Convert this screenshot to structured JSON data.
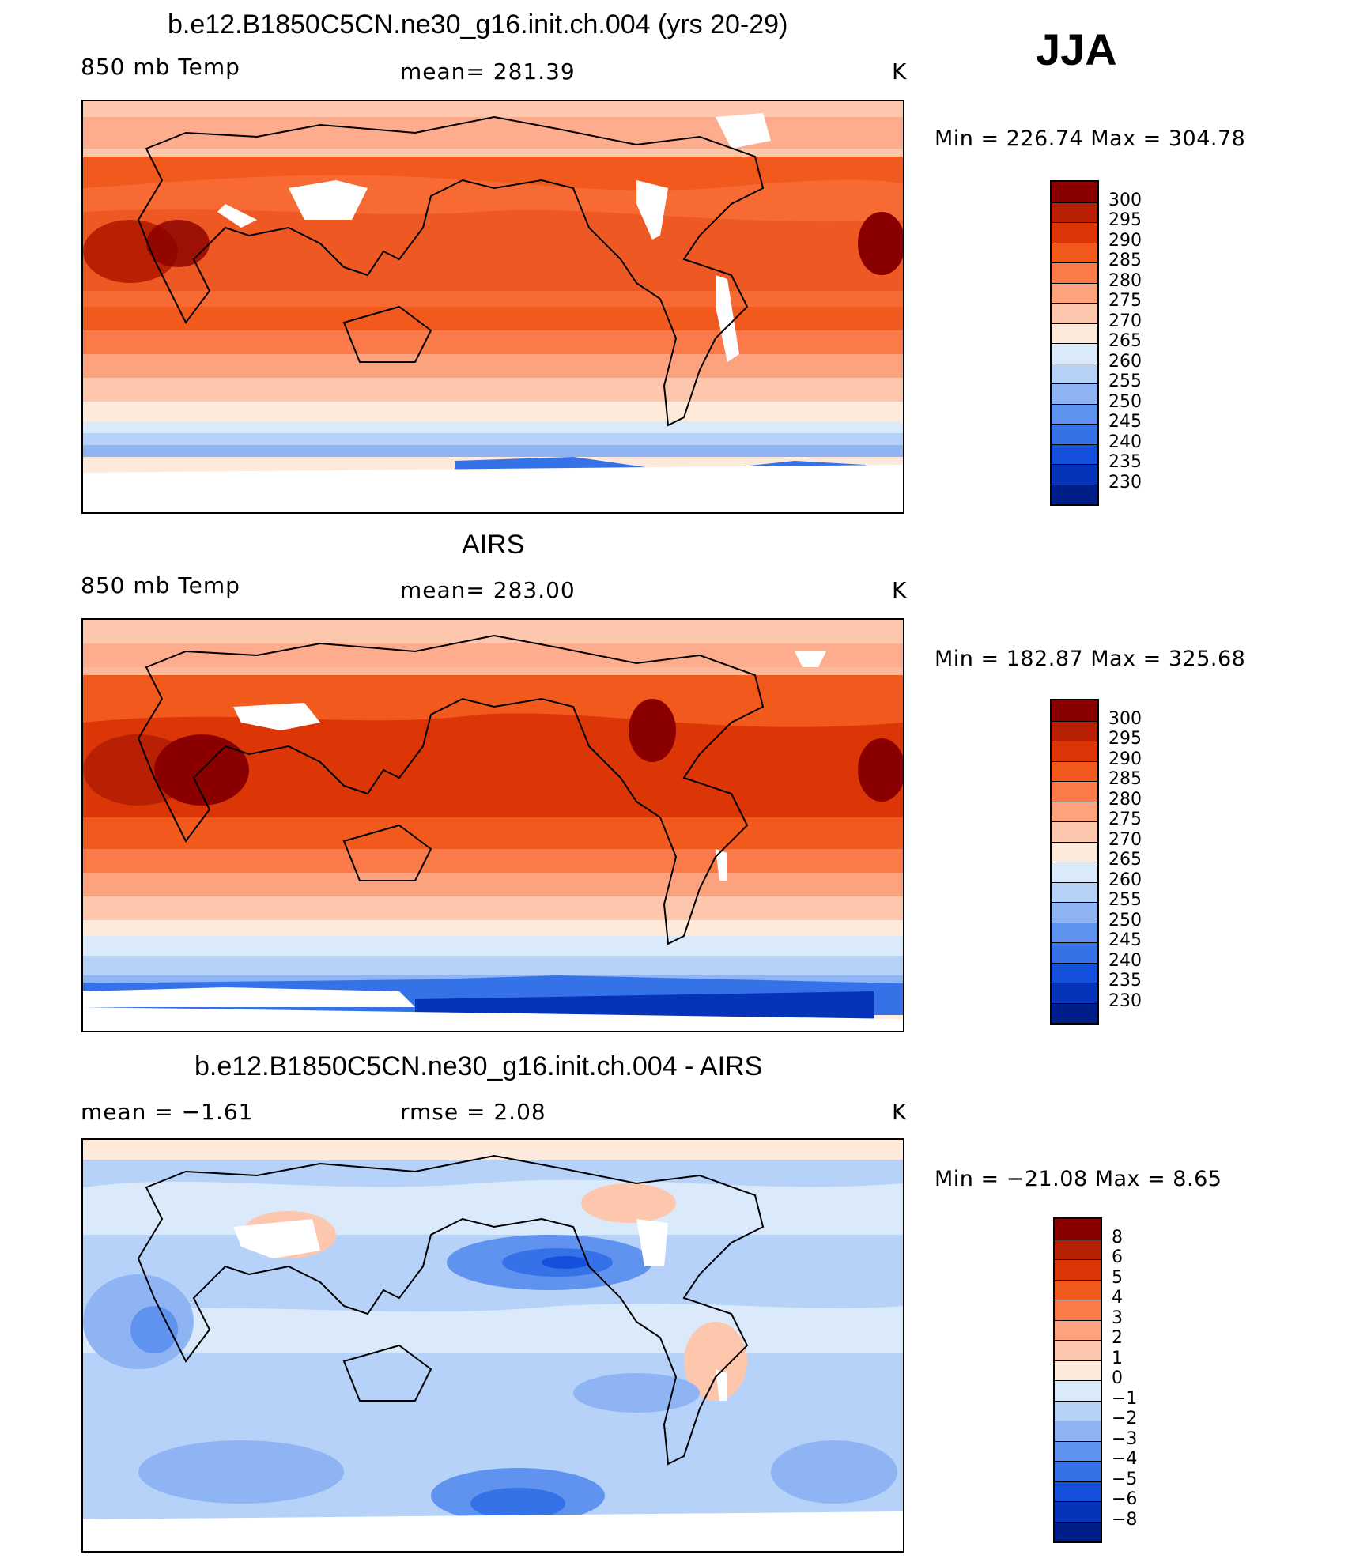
{
  "season": "JJA",
  "panels": [
    {
      "id": "model",
      "title": "b.e12.B1850C5CN.ne30_g16.init.ch.004 (yrs 20-29)",
      "left_label": "850 mb Temp",
      "center_label": "mean=  281.39",
      "units": "K",
      "minmax": "Min  =  226.74  Max  =  304.78",
      "colorbar": {
        "colors": [
          "#8a0000",
          "#b82003",
          "#dc3606",
          "#f25a1d",
          "#fb7a4a",
          "#fca27f",
          "#fdc7ae",
          "#feeada",
          "#dbeafb",
          "#b7d2f8",
          "#8eb4f4",
          "#5f93ef",
          "#3572e8",
          "#1450dc",
          "#0633b8",
          "#001e8a"
        ],
        "labels": [
          "300",
          "295",
          "290",
          "285",
          "280",
          "275",
          "270",
          "265",
          "260",
          "255",
          "250",
          "245",
          "240",
          "235",
          "230"
        ]
      }
    },
    {
      "id": "obs",
      "title": "AIRS",
      "left_label": "850 mb Temp",
      "center_label": "mean=  283.00",
      "units": "K",
      "minmax": "Min  =  182.87  Max  =  325.68",
      "colorbar": {
        "colors": [
          "#8a0000",
          "#b82003",
          "#dc3606",
          "#f25a1d",
          "#fb7a4a",
          "#fca27f",
          "#fdc7ae",
          "#feeada",
          "#dbeafb",
          "#b7d2f8",
          "#8eb4f4",
          "#5f93ef",
          "#3572e8",
          "#1450dc",
          "#0633b8",
          "#001e8a"
        ],
        "labels": [
          "300",
          "295",
          "290",
          "285",
          "280",
          "275",
          "270",
          "265",
          "260",
          "255",
          "250",
          "245",
          "240",
          "235",
          "230"
        ]
      }
    },
    {
      "id": "diff",
      "title": "b.e12.B1850C5CN.ne30_g16.init.ch.004 - AIRS",
      "left_label": "mean  =    −1.61",
      "center_label": "rmse  =     2.08",
      "units": "K",
      "minmax": "Min  =  −21.08  Max  =     8.65",
      "colorbar": {
        "colors": [
          "#8a0000",
          "#b82003",
          "#dc3606",
          "#f25a1d",
          "#fb7a4a",
          "#fca27f",
          "#fdc7ae",
          "#feeada",
          "#dbeafb",
          "#b7d2f8",
          "#8eb4f4",
          "#5f93ef",
          "#3572e8",
          "#1450dc",
          "#0633b8",
          "#001e8a"
        ],
        "labels": [
          "8",
          "6",
          "5",
          "4",
          "3",
          "2",
          "1",
          "0",
          "−1",
          "−2",
          "−3",
          "−4",
          "−5",
          "−6",
          "−8"
        ]
      }
    }
  ]
}
